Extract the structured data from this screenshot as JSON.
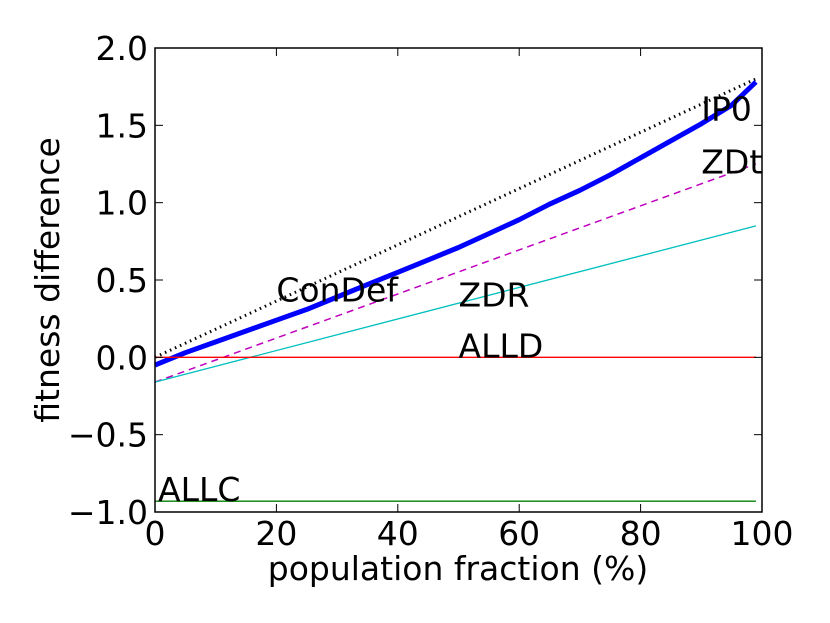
{
  "chart_data": {
    "type": "line",
    "title": "",
    "xlabel": "population fraction (%)",
    "ylabel": "fitness difference",
    "xlim": [
      0,
      100
    ],
    "ylim": [
      -1.0,
      2.0
    ],
    "xticks": [
      "0",
      "20",
      "40",
      "60",
      "80",
      "100"
    ],
    "yticks": [
      "−1.0",
      "−0.5",
      "0.0",
      "0.5",
      "1.0",
      "1.5",
      "2.0"
    ],
    "grid": false,
    "legend": "none",
    "series": [
      {
        "name": "IP0",
        "color": "#000000",
        "style": "dotted",
        "x": [
          0,
          99
        ],
        "y": [
          0.0,
          1.8
        ]
      },
      {
        "name": "ConDef",
        "color": "#0000ff",
        "style": "solid-thick",
        "x": [
          0,
          5,
          10,
          15,
          20,
          25,
          30,
          35,
          40,
          45,
          50,
          55,
          60,
          65,
          70,
          75,
          80,
          85,
          90,
          95,
          99
        ],
        "y": [
          -0.05,
          0.03,
          0.1,
          0.17,
          0.24,
          0.31,
          0.39,
          0.47,
          0.55,
          0.63,
          0.71,
          0.8,
          0.89,
          0.99,
          1.08,
          1.18,
          1.29,
          1.4,
          1.51,
          1.63,
          1.78
        ]
      },
      {
        "name": "ZDt",
        "color": "#bf00bf",
        "style": "dashed",
        "x": [
          0,
          99
        ],
        "y": [
          -0.16,
          1.25
        ]
      },
      {
        "name": "ZDR",
        "color": "#00bfbf",
        "style": "solid",
        "x": [
          0,
          99
        ],
        "y": [
          -0.16,
          0.85
        ]
      },
      {
        "name": "ALLD",
        "color": "#ff0000",
        "style": "solid",
        "x": [
          0,
          99
        ],
        "y": [
          0.0,
          0.0
        ]
      },
      {
        "name": "ALLC",
        "color": "#008000",
        "style": "solid",
        "x": [
          0,
          99
        ],
        "y": [
          -0.93,
          -0.93
        ]
      }
    ],
    "annotations": [
      {
        "text": "IP0",
        "x": 90,
        "y": 1.53
      },
      {
        "text": "ZDt",
        "x": 90,
        "y": 1.19
      },
      {
        "text": "ConDef",
        "x": 20,
        "y": 0.36
      },
      {
        "text": "ZDR",
        "x": 50,
        "y": 0.33
      },
      {
        "text": "ALLD",
        "x": 50,
        "y": 0.0
      },
      {
        "text": "ALLC",
        "x": 0.5,
        "y": -0.93
      }
    ]
  }
}
